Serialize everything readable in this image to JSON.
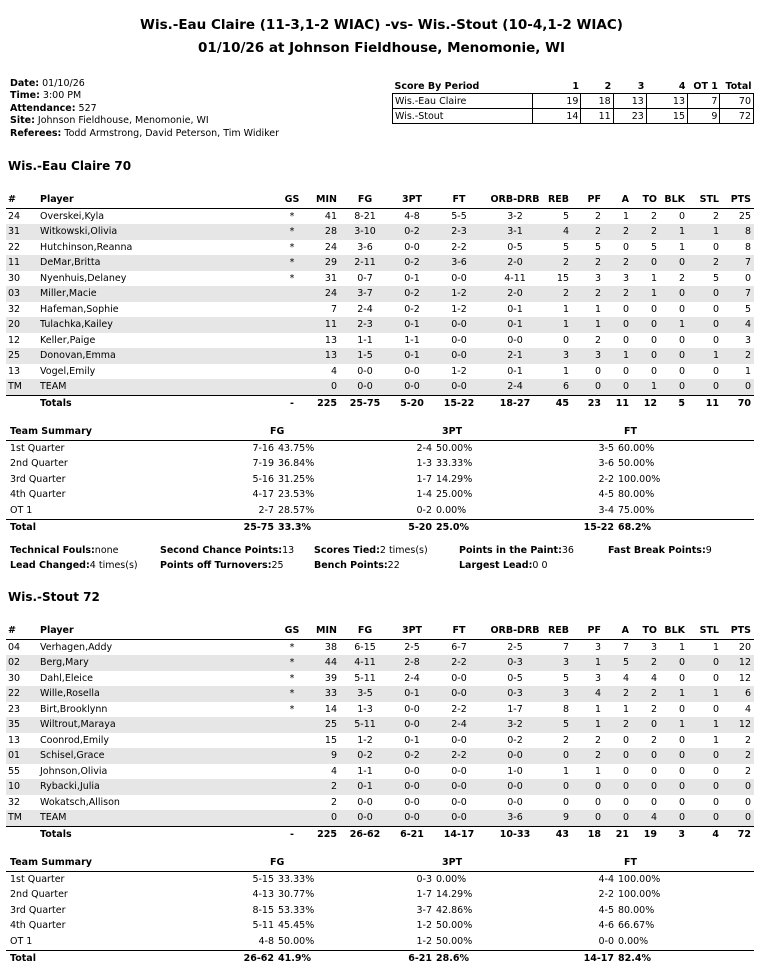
{
  "header": {
    "title": "Wis.-Eau Claire (11-3,1-2 WIAC) -vs- Wis.-Stout (10-4,1-2 WIAC)",
    "subtitle": "01/10/26 at Johnson Fieldhouse, Menomonie, WI"
  },
  "info": [
    {
      "label": "Date:",
      "value": "01/10/26"
    },
    {
      "label": "Time:",
      "value": "3:00 PM"
    },
    {
      "label": "Attendance:",
      "value": "527"
    },
    {
      "label": "Site:",
      "value": "Johnson Fieldhouse, Menomonie, WI"
    },
    {
      "label": "Referees:",
      "value": "Todd Armstrong, David Peterson, Tim Widiker"
    }
  ],
  "score_by_period": {
    "headers": [
      "Score By Period",
      "1",
      "2",
      "3",
      "4",
      "OT 1",
      "Total"
    ],
    "rows": [
      [
        "Wis.-Eau Claire",
        "19",
        "18",
        "13",
        "13",
        "7",
        "70"
      ],
      [
        "Wis.-Stout",
        "14",
        "11",
        "23",
        "15",
        "9",
        "72"
      ]
    ]
  },
  "columns": [
    "#",
    "Player",
    "GS",
    "MIN",
    "FG",
    "3PT",
    "FT",
    "ORB-DRB",
    "REB",
    "PF",
    "A",
    "TO",
    "BLK",
    "STL",
    "PTS"
  ],
  "teams": [
    {
      "heading": "Wis.-Eau Claire 70",
      "players": [
        [
          "24",
          "Overskei,Kyla",
          "*",
          "41",
          "8-21",
          "4-8",
          "5-5",
          "3-2",
          "5",
          "2",
          "1",
          "2",
          "0",
          "2",
          "25"
        ],
        [
          "31",
          "Witkowski,Olivia",
          "*",
          "28",
          "3-10",
          "0-2",
          "2-3",
          "3-1",
          "4",
          "2",
          "2",
          "2",
          "1",
          "1",
          "8"
        ],
        [
          "22",
          "Hutchinson,Reanna",
          "*",
          "24",
          "3-6",
          "0-0",
          "2-2",
          "0-5",
          "5",
          "5",
          "0",
          "5",
          "1",
          "0",
          "8"
        ],
        [
          "11",
          "DeMar,Britta",
          "*",
          "29",
          "2-11",
          "0-2",
          "3-6",
          "2-0",
          "2",
          "2",
          "2",
          "0",
          "0",
          "2",
          "7"
        ],
        [
          "30",
          "Nyenhuis,Delaney",
          "*",
          "31",
          "0-7",
          "0-1",
          "0-0",
          "4-11",
          "15",
          "3",
          "3",
          "1",
          "2",
          "5",
          "0"
        ],
        [
          "03",
          "Miller,Macie",
          "",
          "24",
          "3-7",
          "0-2",
          "1-2",
          "2-0",
          "2",
          "2",
          "2",
          "1",
          "0",
          "0",
          "7"
        ],
        [
          "32",
          "Hafeman,Sophie",
          "",
          "7",
          "2-4",
          "0-2",
          "1-2",
          "0-1",
          "1",
          "1",
          "0",
          "0",
          "0",
          "0",
          "5"
        ],
        [
          "20",
          "Tulachka,Kailey",
          "",
          "11",
          "2-3",
          "0-1",
          "0-0",
          "0-1",
          "1",
          "1",
          "0",
          "0",
          "1",
          "0",
          "4"
        ],
        [
          "12",
          "Keller,Paige",
          "",
          "13",
          "1-1",
          "1-1",
          "0-0",
          "0-0",
          "0",
          "2",
          "0",
          "0",
          "0",
          "0",
          "3"
        ],
        [
          "25",
          "Donovan,Emma",
          "",
          "13",
          "1-5",
          "0-1",
          "0-0",
          "2-1",
          "3",
          "3",
          "1",
          "0",
          "0",
          "1",
          "2"
        ],
        [
          "13",
          "Vogel,Emily",
          "",
          "4",
          "0-0",
          "0-0",
          "1-2",
          "0-1",
          "1",
          "0",
          "0",
          "0",
          "0",
          "0",
          "1"
        ],
        [
          "TM",
          "TEAM",
          "",
          "0",
          "0-0",
          "0-0",
          "0-0",
          "2-4",
          "6",
          "0",
          "0",
          "1",
          "0",
          "0",
          "0"
        ]
      ],
      "totals": [
        "",
        "Totals",
        "-",
        "225",
        "25-75",
        "5-20",
        "15-22",
        "18-27",
        "45",
        "23",
        "11",
        "12",
        "5",
        "11",
        "70"
      ],
      "summary": {
        "headers": [
          "Team Summary",
          "FG",
          "3PT",
          "FT"
        ],
        "rows": [
          [
            "1st Quarter",
            "7-16",
            "43.75%",
            "2-4",
            "50.00%",
            "3-5",
            "60.00%"
          ],
          [
            "2nd Quarter",
            "7-19",
            "36.84%",
            "1-3",
            "33.33%",
            "3-6",
            "50.00%"
          ],
          [
            "3rd Quarter",
            "5-16",
            "31.25%",
            "1-7",
            "14.29%",
            "2-2",
            "100.00%"
          ],
          [
            "4th Quarter",
            "4-17",
            "23.53%",
            "1-4",
            "25.00%",
            "4-5",
            "80.00%"
          ],
          [
            "OT 1",
            "2-7",
            "28.57%",
            "0-2",
            "0.00%",
            "3-4",
            "75.00%"
          ]
        ],
        "total": [
          "Total",
          "25-75",
          "33.3%",
          "5-20",
          "25.0%",
          "15-22",
          "68.2%"
        ]
      }
    },
    {
      "heading": "Wis.-Stout 72",
      "players": [
        [
          "04",
          "Verhagen,Addy",
          "*",
          "38",
          "6-15",
          "2-5",
          "6-7",
          "2-5",
          "7",
          "3",
          "7",
          "3",
          "1",
          "1",
          "20"
        ],
        [
          "02",
          "Berg,Mary",
          "*",
          "44",
          "4-11",
          "2-8",
          "2-2",
          "0-3",
          "3",
          "1",
          "5",
          "2",
          "0",
          "0",
          "12"
        ],
        [
          "30",
          "Dahl,Eleice",
          "*",
          "39",
          "5-11",
          "2-4",
          "0-0",
          "0-5",
          "5",
          "3",
          "4",
          "4",
          "0",
          "0",
          "12"
        ],
        [
          "22",
          "Wille,Rosella",
          "*",
          "33",
          "3-5",
          "0-1",
          "0-0",
          "0-3",
          "3",
          "4",
          "2",
          "2",
          "1",
          "1",
          "6"
        ],
        [
          "23",
          "Birt,Brooklynn",
          "*",
          "14",
          "1-3",
          "0-0",
          "2-2",
          "1-7",
          "8",
          "1",
          "1",
          "2",
          "0",
          "0",
          "4"
        ],
        [
          "35",
          "Wiltrout,Maraya",
          "",
          "25",
          "5-11",
          "0-0",
          "2-4",
          "3-2",
          "5",
          "1",
          "2",
          "0",
          "1",
          "1",
          "12"
        ],
        [
          "13",
          "Coonrod,Emily",
          "",
          "15",
          "1-2",
          "0-1",
          "0-0",
          "0-2",
          "2",
          "2",
          "0",
          "2",
          "0",
          "1",
          "2"
        ],
        [
          "01",
          "Schisel,Grace",
          "",
          "9",
          "0-2",
          "0-2",
          "2-2",
          "0-0",
          "0",
          "2",
          "0",
          "0",
          "0",
          "0",
          "2"
        ],
        [
          "55",
          "Johnson,Olivia",
          "",
          "4",
          "1-1",
          "0-0",
          "0-0",
          "1-0",
          "1",
          "1",
          "0",
          "0",
          "0",
          "0",
          "2"
        ],
        [
          "10",
          "Rybacki,Julia",
          "",
          "2",
          "0-1",
          "0-0",
          "0-0",
          "0-0",
          "0",
          "0",
          "0",
          "0",
          "0",
          "0",
          "0"
        ],
        [
          "32",
          "Wokatsch,Allison",
          "",
          "2",
          "0-0",
          "0-0",
          "0-0",
          "0-0",
          "0",
          "0",
          "0",
          "0",
          "0",
          "0",
          "0"
        ],
        [
          "TM",
          "TEAM",
          "",
          "0",
          "0-0",
          "0-0",
          "0-0",
          "3-6",
          "9",
          "0",
          "0",
          "4",
          "0",
          "0",
          "0"
        ]
      ],
      "totals": [
        "",
        "Totals",
        "-",
        "225",
        "26-62",
        "6-21",
        "14-17",
        "10-33",
        "43",
        "18",
        "21",
        "19",
        "3",
        "4",
        "72"
      ],
      "summary": {
        "headers": [
          "Team Summary",
          "FG",
          "3PT",
          "FT"
        ],
        "rows": [
          [
            "1st Quarter",
            "5-15",
            "33.33%",
            "0-3",
            "0.00%",
            "4-4",
            "100.00%"
          ],
          [
            "2nd Quarter",
            "4-13",
            "30.77%",
            "1-7",
            "14.29%",
            "2-2",
            "100.00%"
          ],
          [
            "3rd Quarter",
            "8-15",
            "53.33%",
            "3-7",
            "42.86%",
            "4-5",
            "80.00%"
          ],
          [
            "4th Quarter",
            "5-11",
            "45.45%",
            "1-2",
            "50.00%",
            "4-6",
            "66.67%"
          ],
          [
            "OT 1",
            "4-8",
            "50.00%",
            "1-2",
            "50.00%",
            "0-0",
            "0.00%"
          ]
        ],
        "total": [
          "Total",
          "26-62",
          "41.9%",
          "6-21",
          "28.6%",
          "14-17",
          "82.4%"
        ]
      }
    }
  ],
  "misc": [
    {
      "label": "Technical Fouls:",
      "value": "none"
    },
    {
      "label": "Second Chance Points:",
      "value": "13"
    },
    {
      "label": "Scores Tied:",
      "value": "2 times(s)"
    },
    {
      "label": "Points in the Paint:",
      "value": "36"
    },
    {
      "label": "Fast Break Points:",
      "value": "9"
    },
    {
      "label": "Lead Changed:",
      "value": "4 times(s)"
    },
    {
      "label": "Points off Turnovers:",
      "value": "25"
    },
    {
      "label": "Bench Points:",
      "value": "22"
    },
    {
      "label": "Largest Lead:",
      "value": "0 0"
    }
  ]
}
